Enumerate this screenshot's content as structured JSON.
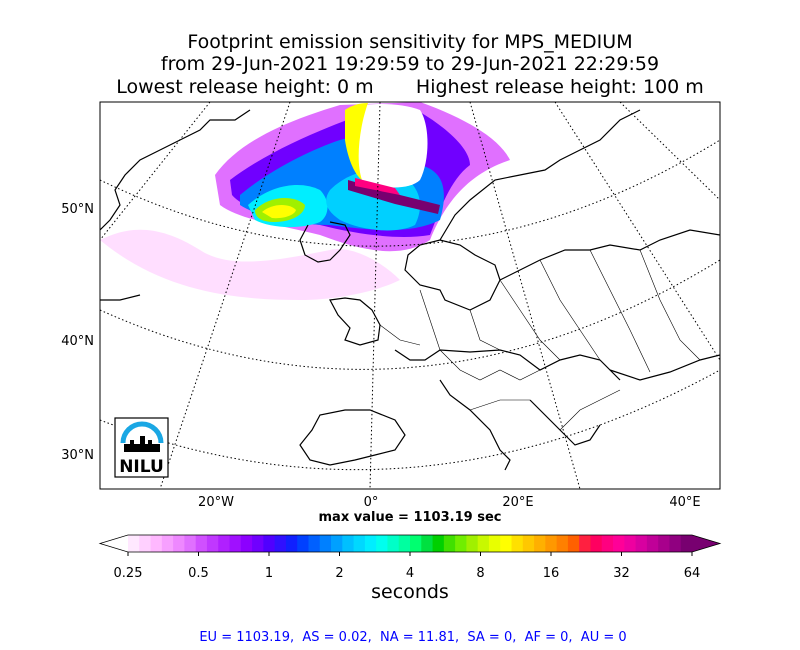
{
  "title": {
    "line1": "Footprint emission sensitivity for MPS_MEDIUM",
    "line2": "from 29-Jun-2021 19:29:59 to 29-Jun-2021 22:29:59",
    "line3": "Lowest release height: 0 m       Highest release height: 100 m"
  },
  "logo": {
    "text": "NILU"
  },
  "chart_data": {
    "type": "heatmap",
    "title": "Footprint emission sensitivity for MPS_MEDIUM",
    "projection": "polar stereographic map of Europe / North Atlantic",
    "lat_ticks": [
      {
        "label": "50°N",
        "lat": 50
      },
      {
        "label": "40°N",
        "lat": 40
      },
      {
        "label": "30°N",
        "lat": 30
      }
    ],
    "lon_ticks": [
      {
        "label": "20°W",
        "lon": -20
      },
      {
        "label": "0°",
        "lon": 0
      },
      {
        "label": "20°E",
        "lon": 20
      },
      {
        "label": "40°E",
        "lon": 40
      }
    ],
    "grid": true,
    "max_value_text": "max value = 1103.19 sec",
    "colorbar": {
      "scale": "log",
      "units": "seconds",
      "tick_labels": [
        "0.25",
        "0.5",
        "1",
        "2",
        "4",
        "8",
        "16",
        "32",
        "64"
      ],
      "colors": [
        "#ffe8ff",
        "#ffd0ff",
        "#ffb8ff",
        "#f7a0ff",
        "#ee88ff",
        "#e070ff",
        "#d050ff",
        "#c038ff",
        "#b020ff",
        "#a010ff",
        "#8c00ff",
        "#7000ff",
        "#5000ff",
        "#3010ff",
        "#1020ff",
        "#0040ff",
        "#0060ff",
        "#0080ff",
        "#00a0ff",
        "#00c0ff",
        "#00d8ff",
        "#00eeff",
        "#00ffee",
        "#00ffc8",
        "#00ffa0",
        "#00ff70",
        "#00e040",
        "#00d000",
        "#40e000",
        "#70ee00",
        "#a0f000",
        "#c8f800",
        "#e8ff00",
        "#ffff00",
        "#ffe000",
        "#ffc800",
        "#ffb000",
        "#ff9800",
        "#ff8000",
        "#ff6000",
        "#ff2040",
        "#ff0060",
        "#ff0080",
        "#ff0098",
        "#ee00a0",
        "#d800a0",
        "#c00098",
        "#a8008c",
        "#900080",
        "#780070"
      ]
    },
    "regional_values_text": "EU = 1103.19,  AS = 0.02,  NA = 11.81,  SA = 0,  AF = 0,  AU = 0"
  }
}
